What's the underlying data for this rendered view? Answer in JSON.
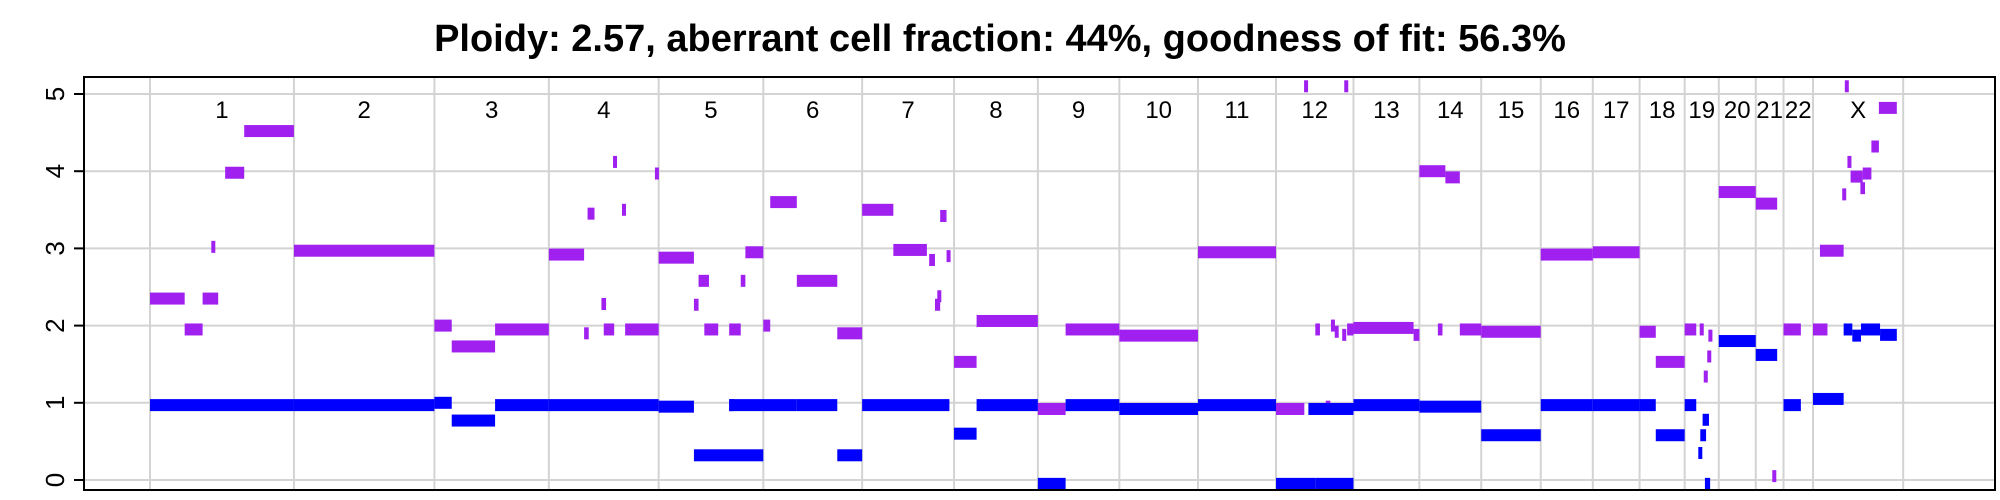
{
  "chart_data": {
    "type": "scatter",
    "title": "Ploidy: 2.57, aberrant cell fraction: 44%, goodness of fit: 56.3%",
    "xlabel": "",
    "ylabel": "",
    "xlim": [
      0,
      3114
    ],
    "ylim": [
      0,
      5
    ],
    "y_ticks": [
      "0",
      "1",
      "2",
      "3",
      "4",
      "5"
    ],
    "grid": true,
    "colors": {
      "total": "#a020f0",
      "minor": "#0000ff",
      "grid": "#d3d3d3"
    },
    "x_unit": "Mb (genome position)",
    "chromosomes": [
      {
        "name": "1",
        "start": 0,
        "end": 249
      },
      {
        "name": "2",
        "start": 249,
        "end": 492
      },
      {
        "name": "3",
        "start": 492,
        "end": 690
      },
      {
        "name": "4",
        "start": 690,
        "end": 880
      },
      {
        "name": "5",
        "start": 880,
        "end": 1061
      },
      {
        "name": "6",
        "start": 1061,
        "end": 1232
      },
      {
        "name": "7",
        "start": 1232,
        "end": 1391
      },
      {
        "name": "8",
        "start": 1391,
        "end": 1536
      },
      {
        "name": "9",
        "start": 1536,
        "end": 1677
      },
      {
        "name": "10",
        "start": 1677,
        "end": 1813
      },
      {
        "name": "11",
        "start": 1813,
        "end": 1948
      },
      {
        "name": "12",
        "start": 1948,
        "end": 2082
      },
      {
        "name": "13",
        "start": 2082,
        "end": 2196
      },
      {
        "name": "14",
        "start": 2196,
        "end": 2303
      },
      {
        "name": "15",
        "start": 2303,
        "end": 2406
      },
      {
        "name": "16",
        "start": 2406,
        "end": 2496
      },
      {
        "name": "17",
        "start": 2496,
        "end": 2577
      },
      {
        "name": "18",
        "start": 2577,
        "end": 2655
      },
      {
        "name": "19",
        "start": 2655,
        "end": 2714
      },
      {
        "name": "20",
        "start": 2714,
        "end": 2778
      },
      {
        "name": "21",
        "start": 2778,
        "end": 2826
      },
      {
        "name": "22",
        "start": 2826,
        "end": 2877
      },
      {
        "name": "X",
        "start": 2877,
        "end": 3033
      }
    ],
    "series": [
      {
        "key": "total",
        "segments": [
          [
            0,
            60,
            2.35
          ],
          [
            60,
            91,
            1.95
          ],
          [
            91,
            118,
            2.35
          ],
          [
            107,
            112,
            3.02
          ],
          [
            130,
            163,
            3.98
          ],
          [
            163,
            249,
            4.52
          ],
          [
            249,
            492,
            2.97
          ],
          [
            492,
            522,
            2.0
          ],
          [
            522,
            597,
            1.73
          ],
          [
            597,
            690,
            1.95
          ],
          [
            690,
            751,
            2.92
          ],
          [
            751,
            759,
            1.9
          ],
          [
            757,
            769,
            3.45
          ],
          [
            781,
            789,
            2.28
          ],
          [
            785,
            803,
            1.95
          ],
          [
            803,
            806,
            4.12
          ],
          [
            818,
            822,
            3.5
          ],
          [
            822,
            880,
            1.95
          ],
          [
            874,
            880,
            3.97
          ],
          [
            880,
            941,
            2.88
          ],
          [
            941,
            949,
            2.27
          ],
          [
            949,
            967,
            2.58
          ],
          [
            959,
            983,
            1.95
          ],
          [
            1002,
            1022,
            1.95
          ],
          [
            1022,
            1030,
            2.58
          ],
          [
            1030,
            1061,
            2.95
          ],
          [
            1061,
            1073,
            2.0
          ],
          [
            1073,
            1119,
            3.6
          ],
          [
            1119,
            1189,
            2.58
          ],
          [
            1189,
            1232,
            1.9
          ],
          [
            1232,
            1286,
            3.5
          ],
          [
            1286,
            1344,
            2.98
          ],
          [
            1348,
            1358,
            2.85
          ],
          [
            1358,
            1367,
            2.27
          ],
          [
            1363,
            1368,
            2.38
          ],
          [
            1367,
            1378,
            3.42
          ],
          [
            1380,
            1383,
            2.9
          ],
          [
            1391,
            1430,
            1.53
          ],
          [
            1430,
            1536,
            2.06
          ],
          [
            1536,
            1584,
            0.92
          ],
          [
            1584,
            1677,
            1.95
          ],
          [
            1677,
            1813,
            1.87
          ],
          [
            1813,
            1948,
            2.95
          ],
          [
            1948,
            1997,
            0.92
          ],
          [
            1998,
            2002,
            5.1
          ],
          [
            2016,
            2024,
            1.95
          ],
          [
            2034,
            2042,
            0.95
          ],
          [
            2045,
            2048,
            2.0
          ],
          [
            2050,
            2056,
            1.92
          ],
          [
            2063,
            2069,
            1.88
          ],
          [
            2068,
            2071,
            5.1
          ],
          [
            2071,
            2082,
            1.95
          ],
          [
            2082,
            2186,
            1.97
          ],
          [
            2186,
            2196,
            1.88
          ],
          [
            2196,
            2241,
            4.0
          ],
          [
            2228,
            2236,
            1.95
          ],
          [
            2241,
            2266,
            3.92
          ],
          [
            2266,
            2303,
            1.95
          ],
          [
            2303,
            2406,
            1.92
          ],
          [
            2406,
            2496,
            2.92
          ],
          [
            2496,
            2577,
            2.95
          ],
          [
            2577,
            2605,
            1.92
          ],
          [
            2605,
            2655,
            1.53
          ],
          [
            2655,
            2675,
            1.95
          ],
          [
            2681,
            2688,
            1.95
          ],
          [
            2688,
            2695,
            1.34
          ],
          [
            2694,
            2701,
            1.6
          ],
          [
            2696,
            2703,
            1.87
          ],
          [
            2714,
            2778,
            3.73
          ],
          [
            2778,
            2815,
            3.58
          ],
          [
            2808,
            2812,
            0.05
          ],
          [
            2826,
            2856,
            1.95
          ],
          [
            2877,
            2902,
            1.95
          ],
          [
            2889,
            2930,
            2.97
          ],
          [
            2933,
            2938,
            5.1
          ],
          [
            2928,
            2934,
            3.7
          ],
          [
            2938,
            2942,
            4.12
          ],
          [
            2942,
            2963,
            3.93
          ],
          [
            2959,
            2967,
            3.78
          ],
          [
            2963,
            2978,
            3.97
          ],
          [
            2978,
            2991,
            4.32
          ],
          [
            2991,
            3022,
            4.82
          ]
        ]
      },
      {
        "key": "minor",
        "segments": [
          [
            0,
            249,
            0.97
          ],
          [
            249,
            492,
            0.97
          ],
          [
            492,
            522,
            1.0
          ],
          [
            522,
            597,
            0.77
          ],
          [
            597,
            690,
            0.97
          ],
          [
            690,
            880,
            0.97
          ],
          [
            880,
            941,
            0.95
          ],
          [
            941,
            1061,
            0.32
          ],
          [
            1002,
            1010,
            0.97
          ],
          [
            1002,
            1119,
            0.97
          ],
          [
            1119,
            1189,
            0.97
          ],
          [
            1189,
            1232,
            0.32
          ],
          [
            1232,
            1383,
            0.97
          ],
          [
            1391,
            1430,
            0.6
          ],
          [
            1430,
            1536,
            0.97
          ],
          [
            1536,
            1584,
            -0.05
          ],
          [
            1584,
            1677,
            0.97
          ],
          [
            1677,
            1813,
            0.92
          ],
          [
            1813,
            1948,
            0.97
          ],
          [
            1948,
            2016,
            -0.05
          ],
          [
            2004,
            2082,
            0.92
          ],
          [
            2016,
            2082,
            -0.05
          ],
          [
            2082,
            2196,
            0.97
          ],
          [
            2196,
            2303,
            0.95
          ],
          [
            2303,
            2406,
            0.58
          ],
          [
            2406,
            2496,
            0.97
          ],
          [
            2496,
            2577,
            0.97
          ],
          [
            2577,
            2605,
            0.97
          ],
          [
            2605,
            2655,
            0.58
          ],
          [
            2655,
            2675,
            0.97
          ],
          [
            2679,
            2685,
            0.35
          ],
          [
            2682,
            2692,
            0.58
          ],
          [
            2686,
            2697,
            0.78
          ],
          [
            2690,
            2699,
            -0.05
          ],
          [
            2714,
            2778,
            1.8
          ],
          [
            2778,
            2815,
            1.62
          ],
          [
            2826,
            2856,
            0.97
          ],
          [
            2877,
            2930,
            1.05
          ],
          [
            2930,
            2945,
            1.95
          ],
          [
            2945,
            2960,
            1.87
          ],
          [
            2960,
            2993,
            1.95
          ],
          [
            2993,
            3022,
            1.88
          ]
        ]
      }
    ]
  }
}
